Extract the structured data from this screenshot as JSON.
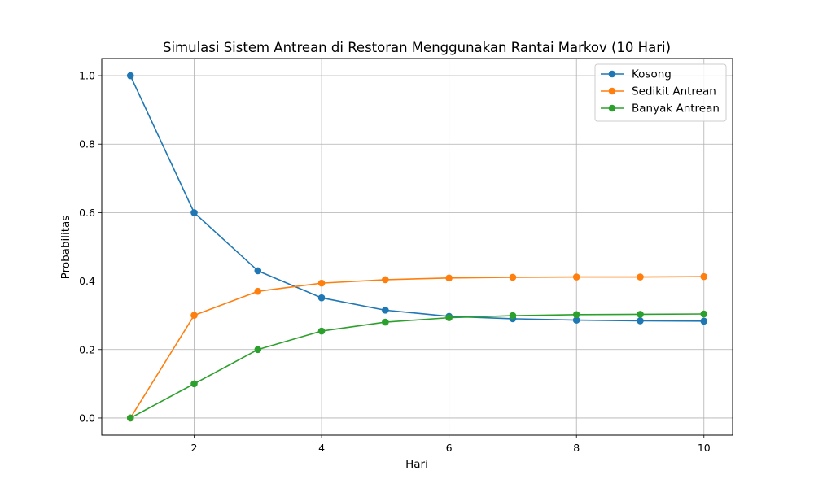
{
  "chart_data": {
    "type": "line",
    "title": "Simulasi Sistem Antrean di Restoran Menggunakan Rantai Markov (10 Hari)",
    "xlabel": "Hari",
    "ylabel": "Probabilitas",
    "xlim": [
      0.55,
      10.45
    ],
    "ylim": [
      -0.05,
      1.05
    ],
    "xticks": [
      2,
      4,
      6,
      8,
      10
    ],
    "yticks": [
      0.0,
      0.2,
      0.4,
      0.6,
      0.8,
      1.0
    ],
    "grid": true,
    "legend_position": "top-right",
    "x": [
      1,
      2,
      3,
      4,
      5,
      6,
      7,
      8,
      9,
      10
    ],
    "series": [
      {
        "name": "Kosong",
        "color": "#1f77b4",
        "marker": "circle",
        "values": [
          1.0,
          0.6,
          0.43,
          0.351,
          0.315,
          0.297,
          0.29,
          0.286,
          0.284,
          0.283
        ]
      },
      {
        "name": "Sedikit Antrean",
        "color": "#ff7f0e",
        "marker": "circle",
        "values": [
          0.0,
          0.3,
          0.37,
          0.394,
          0.404,
          0.409,
          0.411,
          0.412,
          0.412,
          0.413
        ]
      },
      {
        "name": "Banyak Antrean",
        "color": "#2ca02c",
        "marker": "circle",
        "values": [
          0.0,
          0.1,
          0.2,
          0.254,
          0.28,
          0.293,
          0.299,
          0.302,
          0.303,
          0.304
        ]
      }
    ]
  }
}
